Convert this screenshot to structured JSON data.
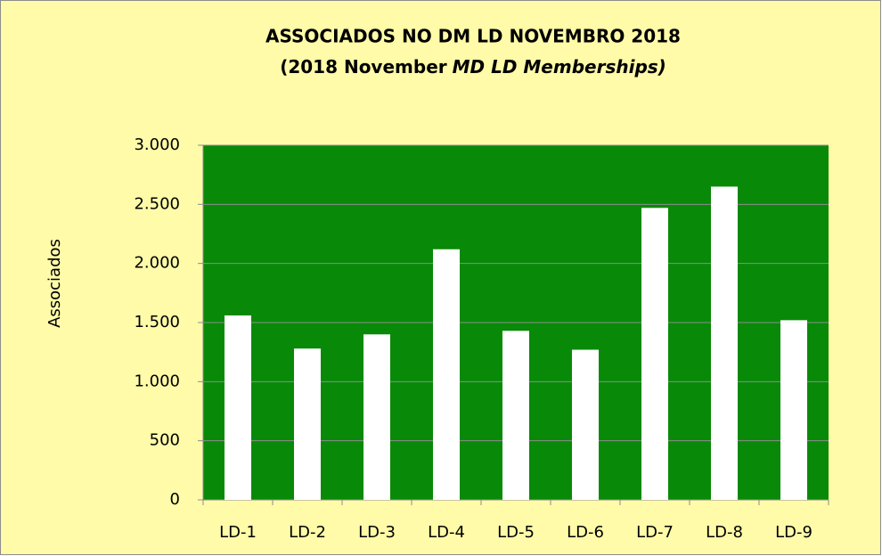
{
  "chart_data": {
    "type": "bar",
    "title": "ASSOCIADOS NO DM LD NOVEMBRO 2018",
    "subtitle": [
      "(2018 November",
      "MD LD Memberships)"
    ],
    "y_label": "Associados",
    "categories": [
      "LD-1",
      "LD-2",
      "LD-3",
      "LD-4",
      "LD-5",
      "LD-6",
      "LD-7",
      "LD-8",
      "LD-9"
    ],
    "values": [
      1560,
      1280,
      1400,
      2120,
      1430,
      1270,
      2470,
      2650,
      1520
    ],
    "color": "#ffffff",
    "plot_color": "#088a08",
    "ylim": [
      0,
      3000
    ],
    "yticks": [
      0,
      500,
      {
        "value": 1000,
        "label": "1.000"
      },
      {
        "value": 1500,
        "label": "1.500"
      },
      {
        "value": 2000,
        "label": "2.000"
      },
      {
        "value": 2500,
        "label": "2.500"
      },
      {
        "value": 3000,
        "label": "3.000"
      }
    ],
    "grid": true
  }
}
